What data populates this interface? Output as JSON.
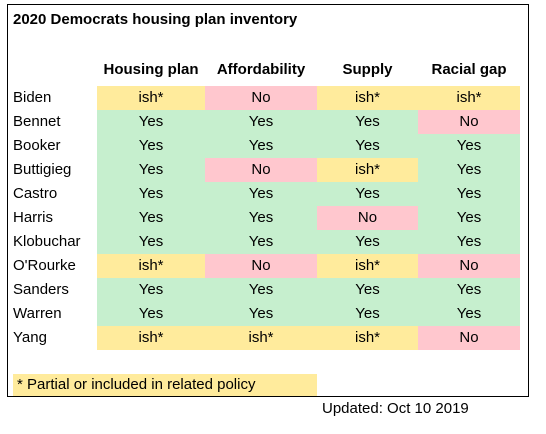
{
  "title": "2020 Democrats housing plan inventory",
  "columns": [
    "Housing plan",
    "Affordability",
    "Supply",
    "Racial gap"
  ],
  "rows": [
    {
      "name": "Biden",
      "values": [
        "ish*",
        "No",
        "ish*",
        "ish*"
      ]
    },
    {
      "name": "Bennet",
      "values": [
        "Yes",
        "Yes",
        "Yes",
        "No"
      ]
    },
    {
      "name": "Booker",
      "values": [
        "Yes",
        "Yes",
        "Yes",
        "Yes"
      ]
    },
    {
      "name": "Buttigieg",
      "values": [
        "Yes",
        "No",
        "ish*",
        "Yes"
      ]
    },
    {
      "name": "Castro",
      "values": [
        "Yes",
        "Yes",
        "Yes",
        "Yes"
      ]
    },
    {
      "name": "Harris",
      "values": [
        "Yes",
        "Yes",
        "No",
        "Yes"
      ]
    },
    {
      "name": "Klobuchar",
      "values": [
        "Yes",
        "Yes",
        "Yes",
        "Yes"
      ]
    },
    {
      "name": "O'Rourke",
      "values": [
        "ish*",
        "No",
        "ish*",
        "No"
      ]
    },
    {
      "name": "Sanders",
      "values": [
        "Yes",
        "Yes",
        "Yes",
        "Yes"
      ]
    },
    {
      "name": "Warren",
      "values": [
        "Yes",
        "Yes",
        "Yes",
        "Yes"
      ]
    },
    {
      "name": "Yang",
      "values": [
        "ish*",
        "ish*",
        "ish*",
        "No"
      ]
    }
  ],
  "colors": {
    "Yes": "#c6efce",
    "No": "#ffc7ce",
    "ish*": "#ffeb9c"
  },
  "footnote": "* Partial or included in related policy",
  "updated": "Updated: Oct 10 2019"
}
